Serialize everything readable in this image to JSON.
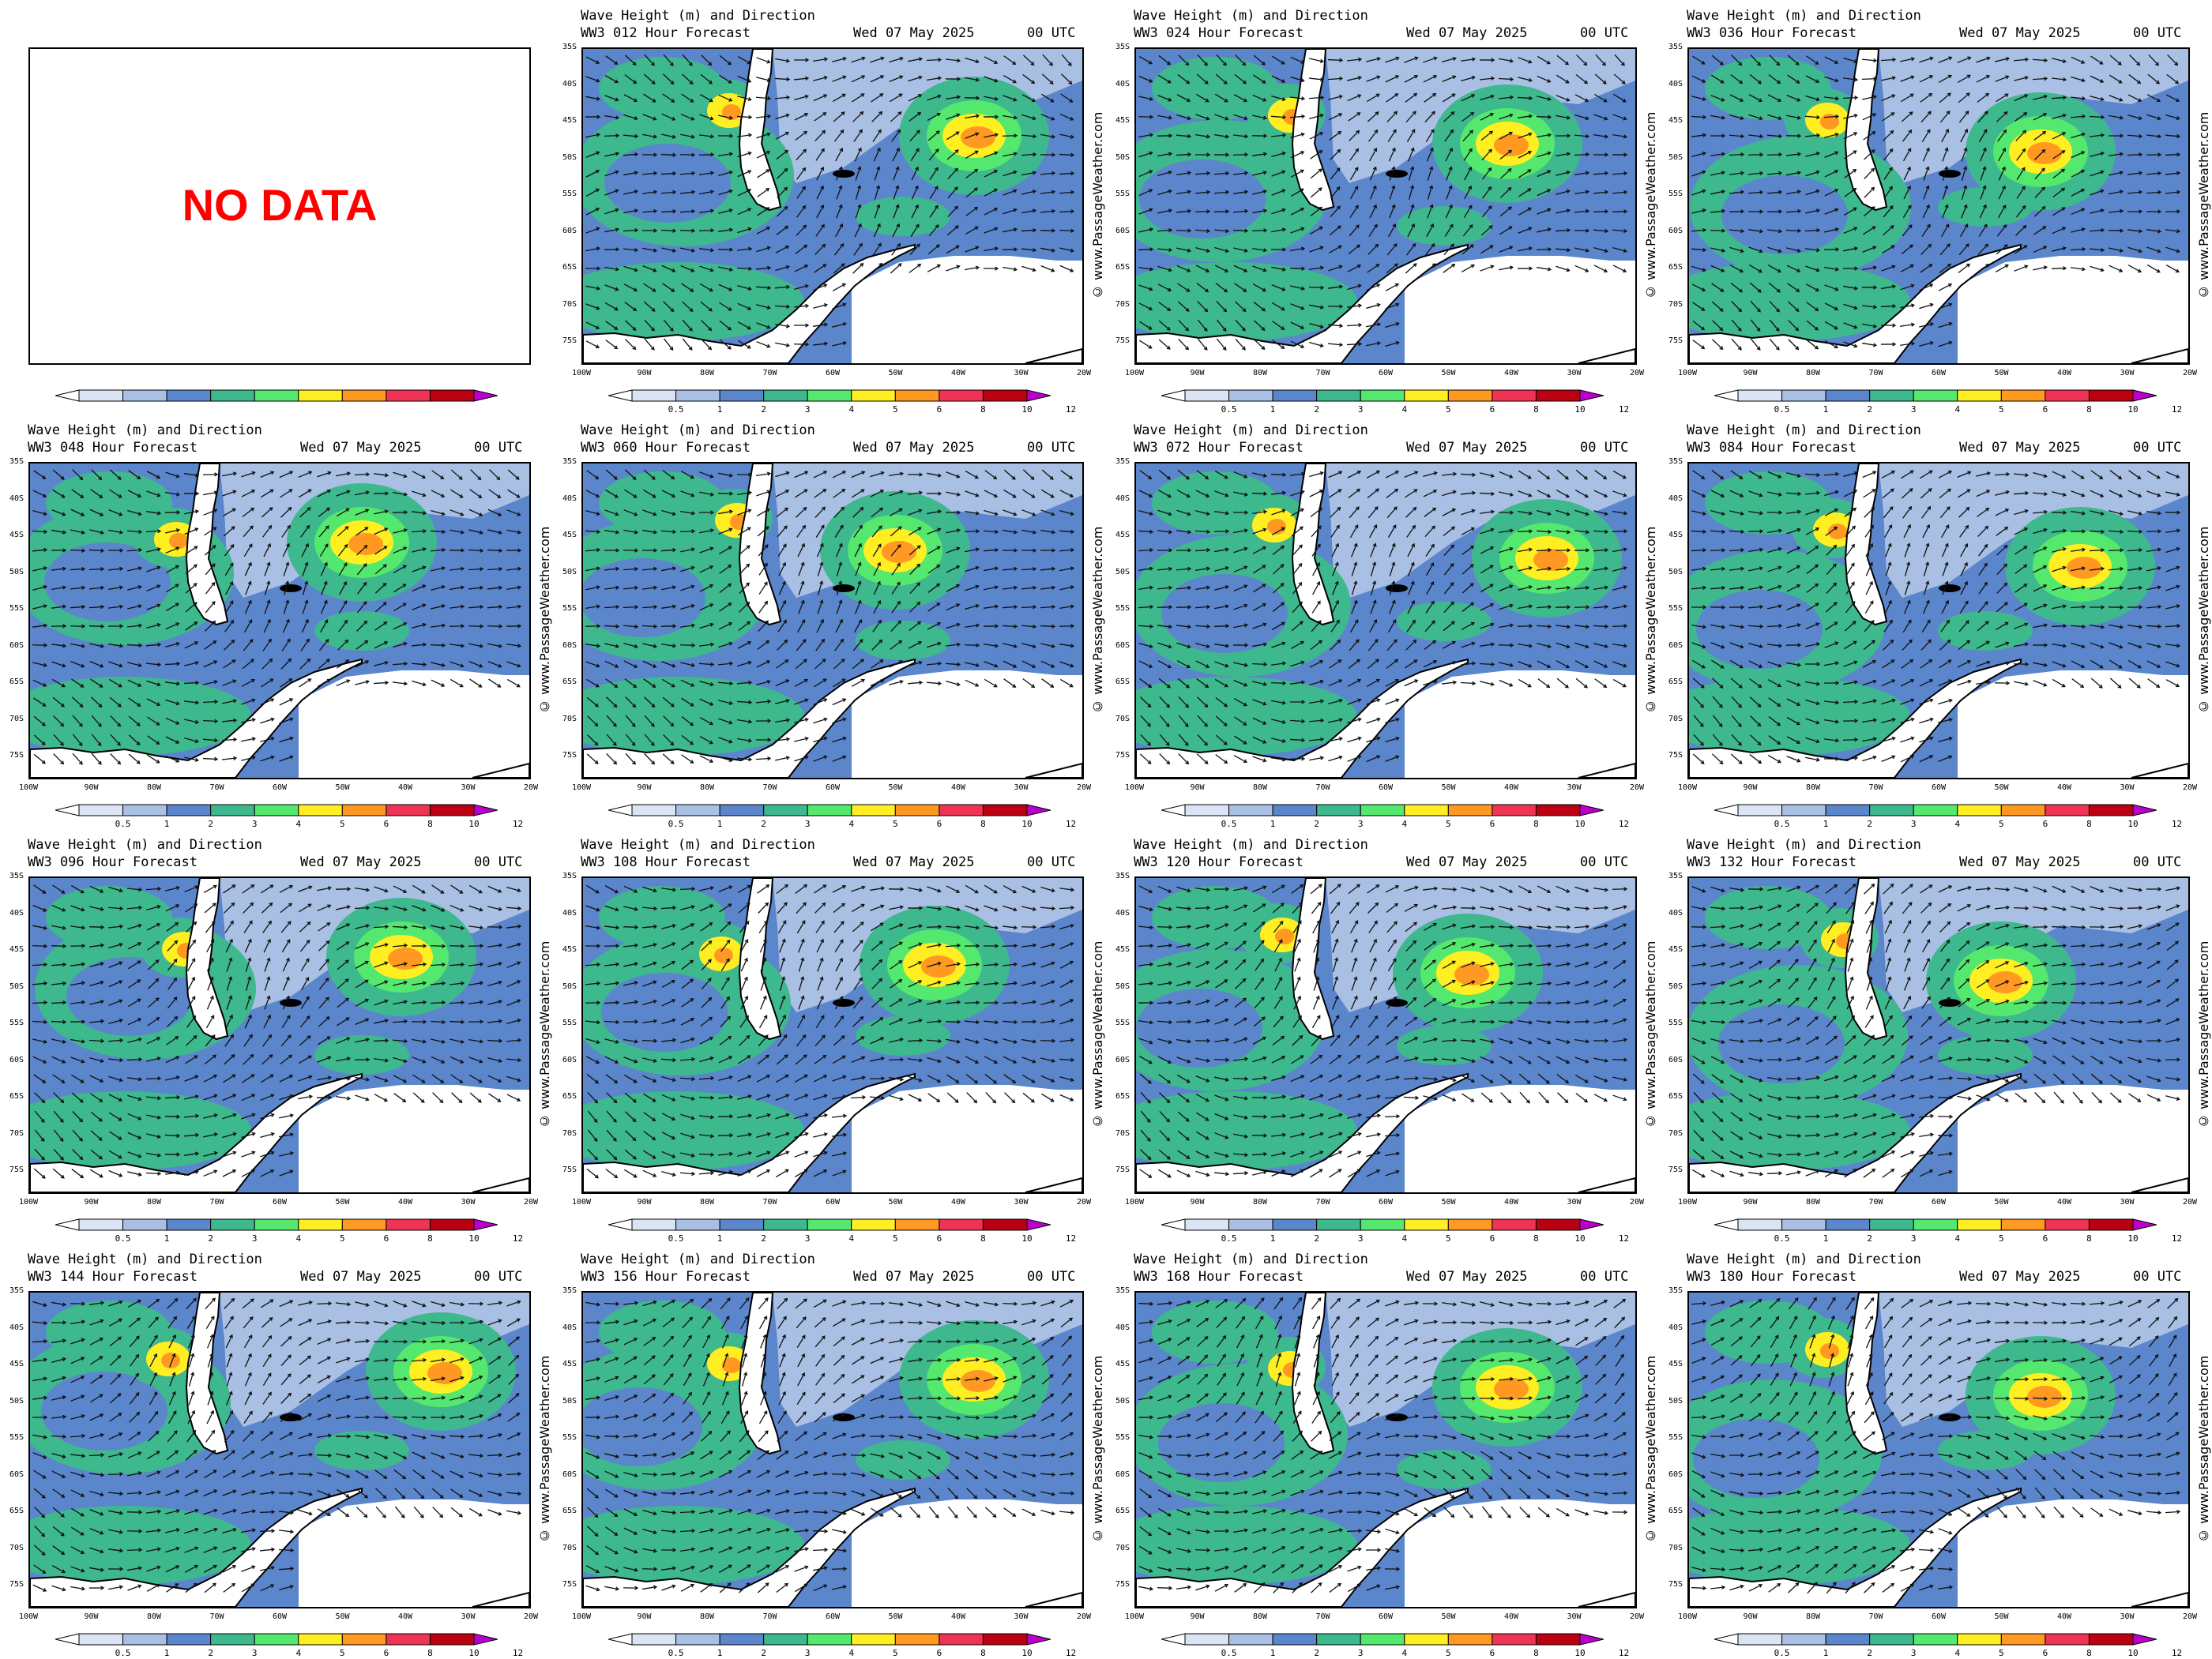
{
  "title_line1": "Wave Height (m) and Direction",
  "date": "Wed 07 May 2025",
  "utc": "00 UTC",
  "credit": "© www.PassageWeather.com",
  "no_data_text": "NO DATA",
  "lat_labels": [
    "35S",
    "40S",
    "45S",
    "50S",
    "55S",
    "60S",
    "65S",
    "70S",
    "75S"
  ],
  "lon_labels": [
    "100W",
    "90W",
    "80W",
    "70W",
    "60W",
    "50W",
    "40W",
    "30W",
    "20W"
  ],
  "colorbar_ticks": [
    "0.5",
    "1",
    "2",
    "3",
    "4",
    "5",
    "6",
    "8",
    "10",
    "12"
  ],
  "colorbar_colors": [
    "#ffffff",
    "#dbe4f5",
    "#a9bfe3",
    "#5b86cc",
    "#3eb88d",
    "#55e86e",
    "#ffee22",
    "#ff9922",
    "#ee3355",
    "#bb0011",
    "#bb00cc"
  ],
  "panels": [
    {
      "hour": "",
      "title_line2": "",
      "no_data": true
    },
    {
      "hour": "012",
      "title_line2": "WW3 012 Hour Forecast",
      "no_data": false
    },
    {
      "hour": "024",
      "title_line2": "WW3 024 Hour Forecast",
      "no_data": false
    },
    {
      "hour": "036",
      "title_line2": "WW3 036 Hour Forecast",
      "no_data": false
    },
    {
      "hour": "048",
      "title_line2": "WW3 048 Hour Forecast",
      "no_data": false
    },
    {
      "hour": "060",
      "title_line2": "WW3 060 Hour Forecast",
      "no_data": false
    },
    {
      "hour": "072",
      "title_line2": "WW3 072 Hour Forecast",
      "no_data": false
    },
    {
      "hour": "084",
      "title_line2": "WW3 084 Hour Forecast",
      "no_data": false
    },
    {
      "hour": "096",
      "title_line2": "WW3 096 Hour Forecast",
      "no_data": false
    },
    {
      "hour": "108",
      "title_line2": "WW3 108 Hour Forecast",
      "no_data": false
    },
    {
      "hour": "120",
      "title_line2": "WW3 120 Hour Forecast",
      "no_data": false
    },
    {
      "hour": "132",
      "title_line2": "WW3 132 Hour Forecast",
      "no_data": false
    },
    {
      "hour": "144",
      "title_line2": "WW3 144 Hour Forecast",
      "no_data": false
    },
    {
      "hour": "156",
      "title_line2": "WW3 156 Hour Forecast",
      "no_data": false
    },
    {
      "hour": "168",
      "title_line2": "WW3 168 Hour Forecast",
      "no_data": false
    },
    {
      "hour": "180",
      "title_line2": "WW3 180 Hour Forecast",
      "no_data": false
    }
  ]
}
